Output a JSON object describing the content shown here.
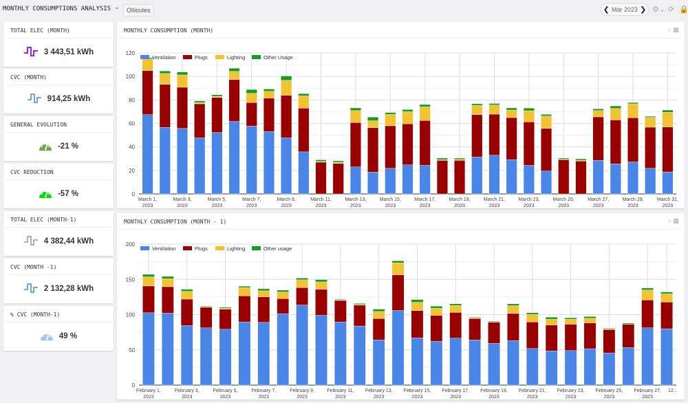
{
  "header": {
    "title": "MONTHLY CONSUMPTIONS ANALYSIS",
    "site": "Ollioules",
    "period": "Mar 2023"
  },
  "colors": {
    "ventilation": "#4a86e8",
    "plugs": "#990000",
    "lighting": "#f1c232",
    "other": "#129e1a"
  },
  "cards": [
    {
      "title": "TOTAL ELEC (MONTH)",
      "value": "3 443,51 kWh",
      "icon": "signal-wave-icon",
      "color": "#a020f0"
    },
    {
      "title": "CVC (MONTH)",
      "value": "914,25 kWh",
      "icon": "signal-wave-icon",
      "color": "#6fa8dc"
    },
    {
      "title": "GENERAL EVOLUTION",
      "value": "-21 %",
      "icon": "gauge-icon",
      "color": "#6aa84f"
    },
    {
      "title": "CVC REDUCTION",
      "value": "-57 %",
      "icon": "gauge-icon",
      "color": "#00e000"
    },
    {
      "title": "TOTAL ELEC (MONTH-1)",
      "value": "4 382,44 kWh",
      "icon": "signal-wave-icon",
      "color": "#b4a7d6"
    },
    {
      "title": "CVC (MONTH -1)",
      "value": "2 132,28 kWh",
      "icon": "signal-wave-icon",
      "color": "#6fa8dc"
    },
    {
      "title": "% CVC (MONTH-1)",
      "value": "49 %",
      "icon": "gauge-icon",
      "color": "#9fc5e8"
    }
  ],
  "chart_data": [
    {
      "title": "MONTHLY CONSUMPTION (MONTH)",
      "type": "bar",
      "stacked": true,
      "ylim": [
        0,
        120
      ],
      "yticks": [
        0,
        20,
        40,
        60,
        80,
        100,
        120
      ],
      "legend": "top-left",
      "categories": [
        "March 1, 2023",
        "March 2, 2023",
        "March 3, 2023",
        "March 4, 2023",
        "March 5, 2023",
        "March 6, 2023",
        "March 7, 2023",
        "March 8, 2023",
        "March 9, 2023",
        "March 10, 2023",
        "March 11, 2023",
        "March 12, 2023",
        "March 13, 2023",
        "March 14, 2023",
        "March 15, 2023",
        "March 16, 2023",
        "March 17, 2023",
        "March 18, 2023",
        "March 19, 2023",
        "March 20, 2023",
        "March 21, 2023",
        "March 22, 2023",
        "March 23, 2023",
        "March 24, 2023",
        "March 25, 2023",
        "March 26, 2023",
        "March 27, 2023",
        "March 28, 2023",
        "March 29, 2023",
        "March 30, 2023",
        "March 31, 2023"
      ],
      "xtick_labels": [
        [
          "March 1,",
          "2023"
        ],
        null,
        [
          "March 3,",
          "2023"
        ],
        null,
        [
          "March 5,",
          "2023"
        ],
        null,
        [
          "March 7,",
          "2023"
        ],
        null,
        [
          "March 9,",
          "2023"
        ],
        null,
        [
          "March 11,",
          "2023"
        ],
        null,
        [
          "March 13,",
          "2023"
        ],
        null,
        [
          "March 15,",
          "2023"
        ],
        null,
        [
          "March 17,",
          "2023"
        ],
        null,
        [
          "March 19,",
          "2023"
        ],
        null,
        [
          "March 21,",
          "2023"
        ],
        null,
        [
          "March 23,",
          "2023"
        ],
        null,
        [
          "March 25,",
          "2023"
        ],
        null,
        [
          "March 27,",
          "2023"
        ],
        null,
        [
          "March 29,",
          "2023"
        ],
        null,
        [
          "March 31,",
          "2023"
        ]
      ],
      "series": [
        {
          "name": "Ventilation",
          "values": [
            67.5,
            56.6,
            55.8,
            47.7,
            52.3,
            61.7,
            57.8,
            53.1,
            47.7,
            35.8,
            0,
            0,
            23,
            18.5,
            21.8,
            24.7,
            24.3,
            0,
            0,
            31.5,
            32.9,
            29.2,
            24.3,
            19.5,
            0,
            0,
            28.6,
            25.5,
            27.2,
            21.8,
            18.7
          ]
        },
        {
          "name": "Plugs",
          "values": [
            37.5,
            36.6,
            35,
            29,
            29.8,
            35.6,
            20,
            28.4,
            36.3,
            37.2,
            27,
            26,
            37.7,
            37.9,
            36.2,
            35,
            38.2,
            28.6,
            28.6,
            36,
            35,
            35.8,
            37,
            36.3,
            29.2,
            28,
            37,
            37.5,
            37.6,
            35,
            38.3
          ]
        },
        {
          "name": "Lighting",
          "values": [
            10,
            9.3,
            10.5,
            1,
            1,
            7,
            7.8,
            5.9,
            12.7,
            10.5,
            0.6,
            1,
            10.3,
            5.9,
            9.7,
            10.3,
            11.6,
            0.6,
            0.8,
            7.8,
            7.8,
            6.4,
            9.5,
            10.5,
            0.4,
            0.6,
            5.4,
            9.8,
            11.9,
            8.4,
            12.5
          ]
        },
        {
          "name": "Other Usage",
          "values": [
            1,
            2.2,
            2.5,
            1.4,
            1.3,
            2.7,
            3.3,
            1.9,
            3.7,
            1.9,
            1.4,
            1.2,
            2.2,
            3.1,
            1.6,
            1.8,
            2,
            1.3,
            1.1,
            1.4,
            1.3,
            1.8,
            2.2,
            1.4,
            0.9,
            1.2,
            1.4,
            2.1,
            1.1,
            0.9,
            1.9
          ]
        }
      ]
    },
    {
      "title": "MONTHLY CONSUMPTION (MONTH - 1)",
      "type": "bar",
      "stacked": true,
      "ylim": [
        0,
        200
      ],
      "yticks": [
        0,
        50,
        100,
        150,
        200
      ],
      "legend": "top-left",
      "categories": [
        "February 1, 2023",
        "February 2, 2023",
        "February 3, 2023",
        "February 4, 2023",
        "February 5, 2023",
        "February 6, 2023",
        "February 7, 2023",
        "February 8, 2023",
        "February 9, 2023",
        "February 10, 2023",
        "February 11, 2023",
        "February 12, 2023",
        "February 13, 2023",
        "February 14, 2023",
        "February 15, 2023",
        "February 16, 2023",
        "February 17, 2023",
        "February 18, 2023",
        "February 19, 2023",
        "February 20, 2023",
        "February 21, 2023",
        "February 22, 2023",
        "February 23, 2023",
        "February 24, 2023",
        "February 25, 2023",
        "February 26, 2023",
        "February 27, 2023",
        "February 28, 2023"
      ],
      "xtick_labels": [
        [
          "February 1,",
          "2023"
        ],
        null,
        [
          "February 3,",
          "2023"
        ],
        null,
        [
          "February 5,",
          "2023"
        ],
        null,
        [
          "February 7,",
          "2023"
        ],
        null,
        [
          "February 9,",
          "2023"
        ],
        null,
        [
          "February 11,",
          "2023"
        ],
        null,
        [
          "February 13,",
          "2023"
        ],
        null,
        [
          "February 15,",
          "2023"
        ],
        null,
        [
          "February 17,",
          "2023"
        ],
        null,
        [
          "February 19,",
          "2023"
        ],
        null,
        [
          "February 21,",
          "2023"
        ],
        null,
        [
          "February 23,",
          "2023"
        ],
        null,
        [
          "February 25,",
          "2023"
        ],
        null,
        [
          "February 27,",
          "2023"
        ],
        [
          "12...",
          ""
        ]
      ],
      "series": [
        {
          "name": "Ventilation",
          "values": [
            102.6,
            102,
            84.4,
            81.2,
            79.2,
            89.6,
            89,
            101.3,
            113.6,
            99,
            89.6,
            83.8,
            64,
            105.8,
            66.9,
            62,
            66.6,
            64,
            59.1,
            63,
            51.9,
            48.4,
            49,
            51.6,
            45.5,
            53.2,
            81.2,
            79.9
          ]
        },
        {
          "name": "Plugs",
          "values": [
            38,
            37.6,
            37.6,
            29.2,
            28.6,
            37,
            36.3,
            21.4,
            24.7,
            37,
            30.5,
            29.8,
            30.5,
            50.7,
            38.9,
            37,
            36.6,
            30.5,
            30.2,
            38.6,
            37.7,
            36.7,
            37.4,
            36.7,
            33.4,
            33.2,
            39.6,
            38
          ]
        },
        {
          "name": "Lighting",
          "values": [
            13,
            11.4,
            11.1,
            0.6,
            1.3,
            11.7,
            8.5,
            9.4,
            11.1,
            10.4,
            0.7,
            0.7,
            10,
            16.9,
            11.7,
            10.1,
            9.8,
            1,
            0.3,
            11.1,
            10.7,
            8.4,
            7.1,
            6.5,
            1,
            0.3,
            14.2,
            11.6
          ]
        },
        {
          "name": "Other usage",
          "values": [
            3.5,
            3.2,
            2.9,
            1,
            1.3,
            2,
            2.9,
            2.6,
            2.5,
            3.3,
            1,
            1.6,
            3.3,
            2.9,
            3.9,
            2.9,
            2.3,
            0.9,
            1,
            2.6,
            2.3,
            2.9,
            2,
            2.6,
            0.9,
            1.3,
            2.7,
            2.6
          ]
        }
      ]
    }
  ]
}
